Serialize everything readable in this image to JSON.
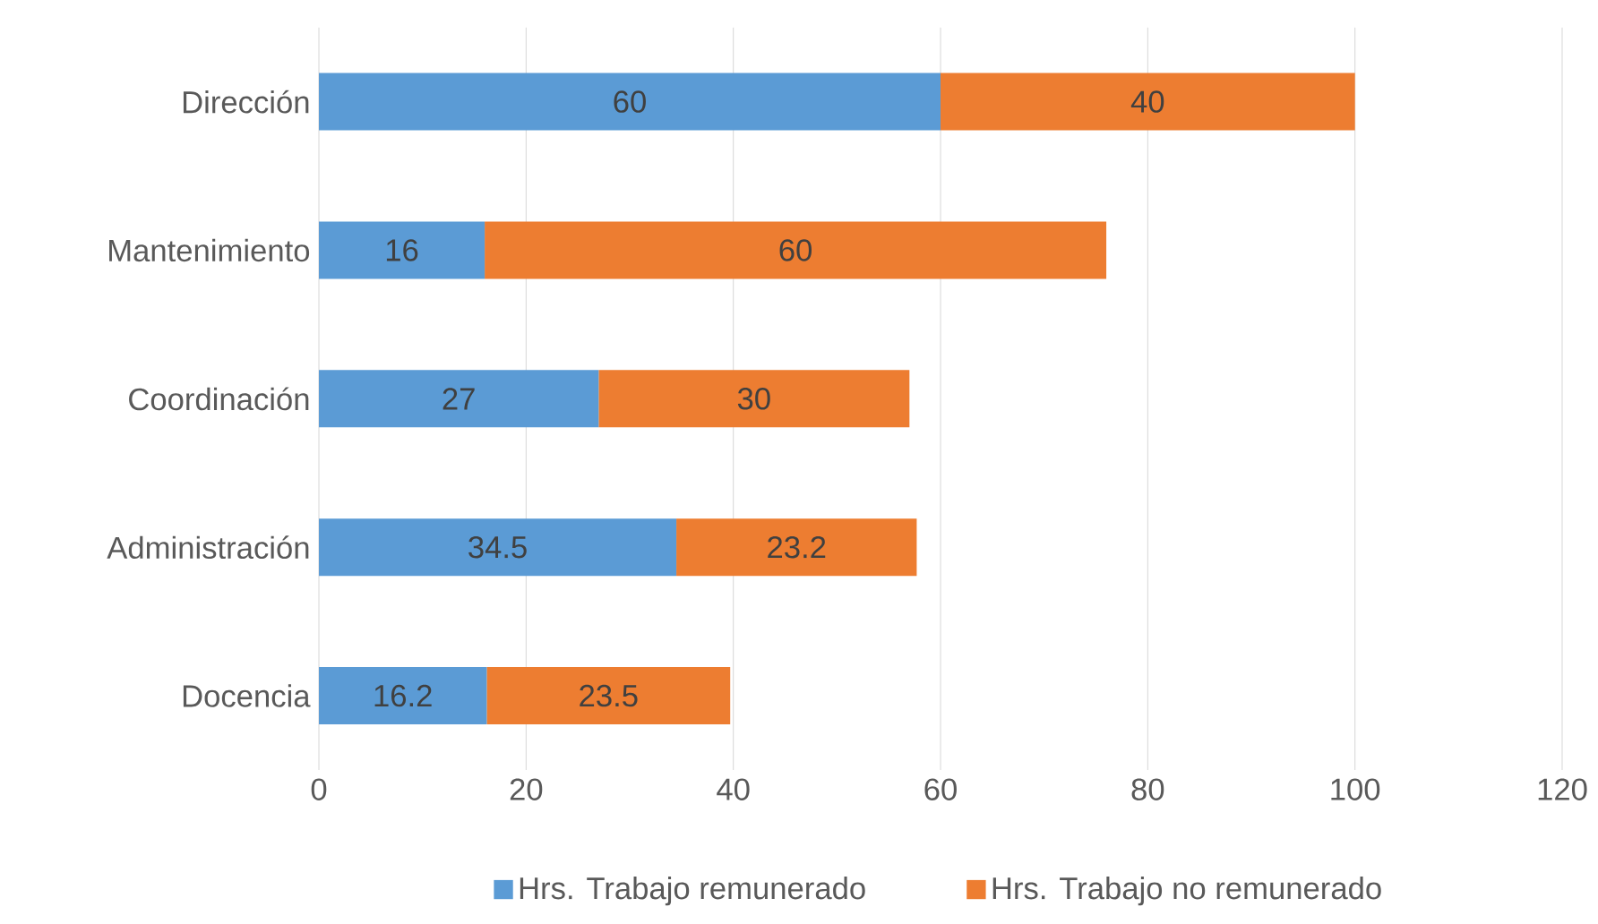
{
  "chart_data": {
    "type": "bar",
    "orientation": "horizontal",
    "stacked": true,
    "categories": [
      "Dirección",
      "Mantenimiento",
      "Coordinación",
      "Administración",
      "Docencia"
    ],
    "series": [
      {
        "name": "Hrs. Trabajo remunerado",
        "color": "#5b9bd5",
        "values": [
          60,
          16,
          27,
          34.5,
          16.2
        ]
      },
      {
        "name": "Hrs. Trabajo no remunerado",
        "color": "#ed7d31",
        "values": [
          40,
          60,
          30,
          23.2,
          23.5
        ]
      }
    ],
    "xlim": [
      0,
      120
    ],
    "xticks": [
      0,
      20,
      40,
      60,
      80,
      100,
      120
    ],
    "grid": "x",
    "legend": "bottom",
    "data_labels": true
  }
}
